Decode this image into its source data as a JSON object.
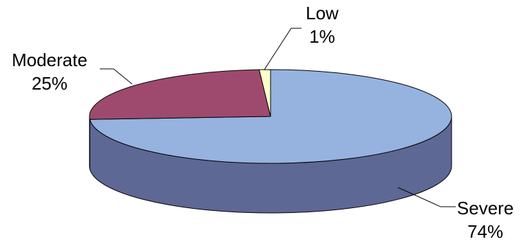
{
  "chart_data": {
    "type": "pie",
    "title": "",
    "slices": [
      {
        "label": "Severe",
        "value": 74,
        "value_label": "74%",
        "color": "#95b3de",
        "side_color": "#5e6894"
      },
      {
        "label": "Moderate",
        "value": 25,
        "value_label": "25%",
        "color": "#9e4a6e",
        "side_color": "#6e2f4b"
      },
      {
        "label": "Low",
        "value": 1,
        "value_label": "1%",
        "color": "#ffffc8",
        "side_color": "#c9c98f"
      }
    ],
    "style": "3d-pie",
    "legend": "none",
    "data_labels": "outside with leader lines"
  }
}
